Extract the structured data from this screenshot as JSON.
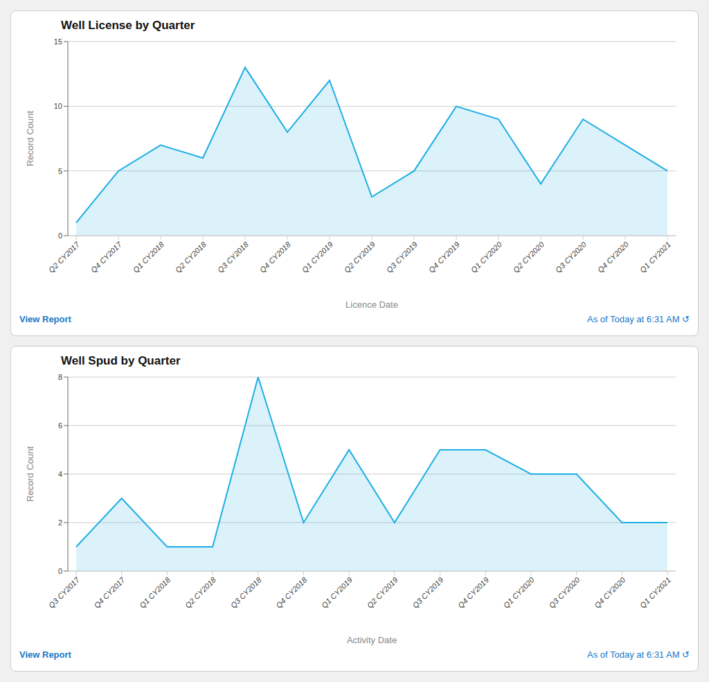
{
  "chart_data": [
    {
      "type": "area",
      "title": "Well License by Quarter",
      "x_label": "Licence Date",
      "y_label": "Record Count",
      "categories": [
        "Q2 CY2017",
        "Q4 CY2017",
        "Q1 CY2018",
        "Q2 CY2018",
        "Q3 CY2018",
        "Q4 CY2018",
        "Q1 CY2019",
        "Q2 CY2019",
        "Q3 CY2019",
        "Q4 CY2019",
        "Q1 CY2020",
        "Q2 CY2020",
        "Q3 CY2020",
        "Q4 CY2020",
        "Q1 CY2021"
      ],
      "values": [
        1,
        5,
        7,
        6,
        13,
        8,
        12,
        3,
        5,
        10,
        9,
        4,
        9,
        7,
        5
      ],
      "ylim": [
        0,
        15
      ],
      "yticks": [
        0,
        5,
        10,
        15
      ],
      "grid": true,
      "color": "#1caee4",
      "annotations": [
        {
          "text": "View Report",
          "color": "#1878c8"
        },
        {
          "text": "As of Today at 6:31 AM  ↺",
          "color": "#1878c8"
        }
      ]
    },
    {
      "type": "area",
      "title": "Well Spud by Quarter",
      "x_label": "Activity Date",
      "y_label": "Record Count",
      "categories": [
        "Q3 CY2017",
        "Q4 CY2017",
        "Q1 CY2018",
        "Q2 CY2018",
        "Q3 CY2018",
        "Q4 CY2018",
        "Q1 CY2019",
        "Q2 CY2019",
        "Q3 CY2019",
        "Q4 CY2019",
        "Q1 CY2020",
        "Q3 CY2020",
        "Q4 CY2020",
        "Q1 CY2021"
      ],
      "values": [
        1,
        3,
        1,
        1,
        8,
        2,
        5,
        2,
        5,
        5,
        4,
        4,
        2,
        2
      ],
      "ylim": [
        0,
        8
      ],
      "yticks": [
        0,
        2,
        4,
        6,
        8
      ],
      "grid": true,
      "color": "#1caee4",
      "annotations": [
        {
          "text": "View Report",
          "color": "#1878c8"
        },
        {
          "text": "As of Today at 6:31 AM  ↺",
          "color": "#1878c8"
        }
      ]
    }
  ]
}
